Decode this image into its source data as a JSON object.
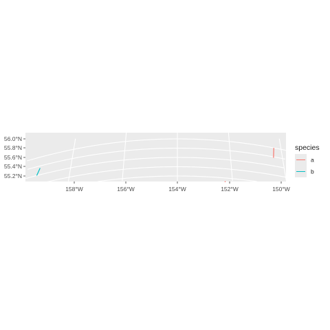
{
  "chart_data": {
    "type": "line",
    "title": "",
    "xlabel": "",
    "ylabel": "",
    "x_ticks": [
      "158°W",
      "156°W",
      "154°W",
      "152°W",
      "150°W"
    ],
    "y_ticks": [
      "56.0°N",
      "55.8°N",
      "55.6°N",
      "55.4°N",
      "55.2°N"
    ],
    "x_tick_values": [
      -158,
      -156,
      -154,
      -152,
      -150
    ],
    "y_tick_values": [
      56.0,
      55.8,
      55.6,
      55.4,
      55.2
    ],
    "xlim": [
      -159.7,
      -149.9
    ],
    "ylim": [
      55.05,
      56.05
    ],
    "grid": true,
    "legend": {
      "title": "species",
      "position": "right"
    },
    "series": [
      {
        "name": "a",
        "color": "#F8766D",
        "segments": [
          [
            [
              -150.35,
              55.78
            ],
            [
              -150.28,
              56.0
            ]
          ],
          [
            [
              -152.28,
              55.11
            ],
            [
              -152.26,
              55.13
            ]
          ]
        ]
      },
      {
        "name": "b",
        "color": "#00BFC4",
        "segments": [
          [
            [
              -159.27,
              55.6
            ],
            [
              -159.2,
              55.75
            ]
          ]
        ]
      }
    ]
  }
}
